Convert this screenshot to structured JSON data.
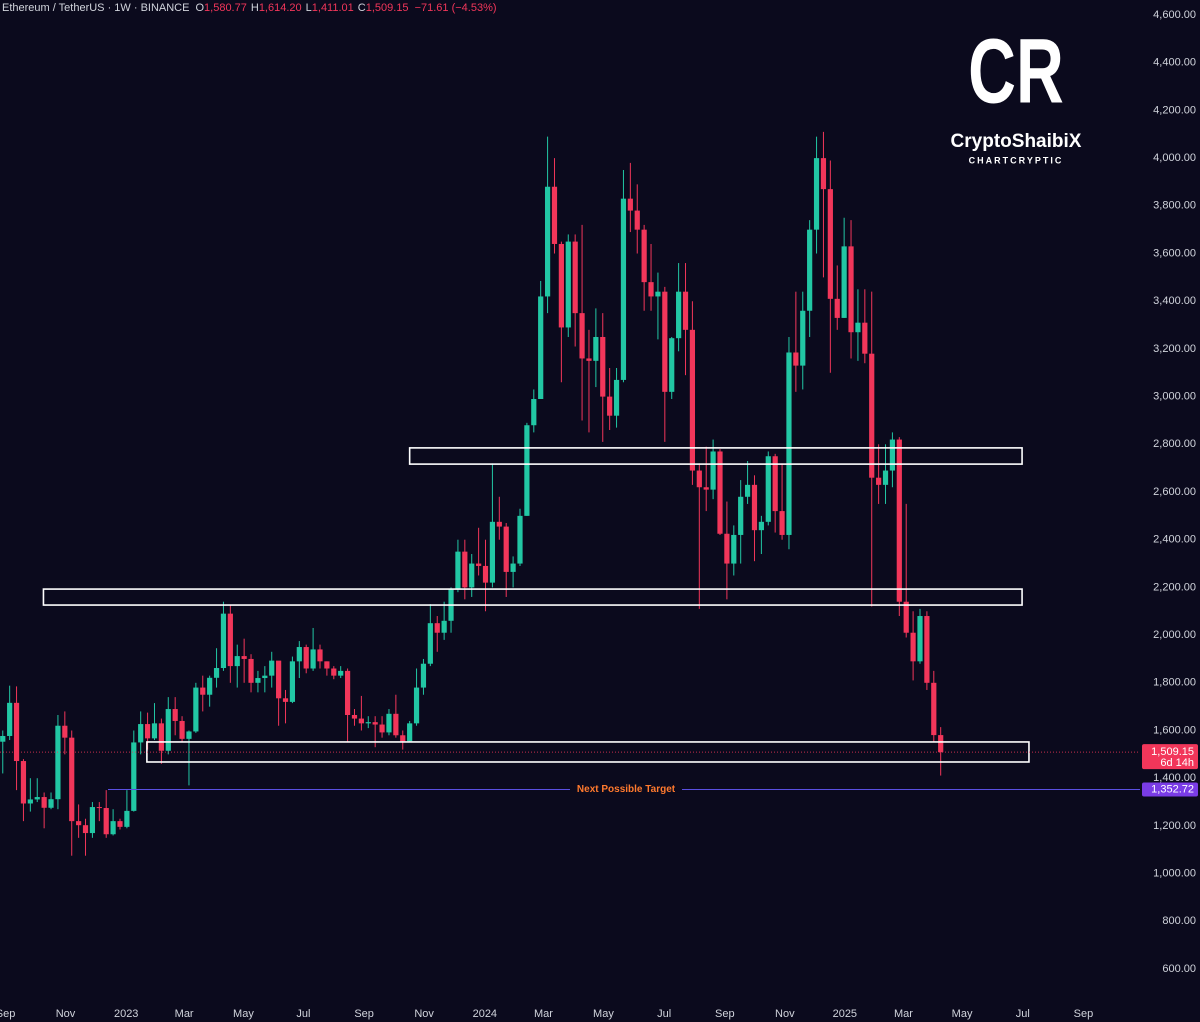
{
  "chart_data": {
    "type": "candlestick",
    "header": {
      "symbol": "Ethereum / TetherUS · 1W · BINANCE",
      "ohlc": [
        {
          "key": "O",
          "value": "1,580.77"
        },
        {
          "key": "H",
          "value": "1,614.20"
        },
        {
          "key": "L",
          "value": "1,411.01"
        },
        {
          "key": "C",
          "value": "1,509.15"
        }
      ],
      "change": "−71.61 (−4.53%)"
    },
    "logo": {
      "mark": "CR",
      "name": "CryptoShaibiX",
      "tagline": "CHARTCRYPTIC"
    },
    "up_color": "#22c7a4",
    "down_color": "#f2365a",
    "open": [
      1553,
      1577,
      1716,
      1472,
      1294,
      1311,
      1321,
      1276,
      1312,
      1620,
      1570,
      1220,
      1203,
      1170,
      1279,
      1275,
      1165,
      1220,
      1196,
      1263,
      1550,
      1627,
      1567,
      1630,
      1515,
      1690,
      1640,
      1565,
      1596,
      1780,
      1750,
      1821,
      1862,
      2090,
      1870,
      1912,
      1900,
      1800,
      1820,
      1830,
      1893,
      1735,
      1720,
      1890,
      1950,
      1860,
      1940,
      1890,
      1860,
      1830,
      1850,
      1665,
      1650,
      1630,
      1635,
      1625,
      1592,
      1670,
      1580,
      1555,
      1630,
      1780,
      1880,
      2050,
      2010,
      2060,
      2195,
      2350,
      2200,
      2300,
      2290,
      2220,
      2475,
      2455,
      2265,
      2300,
      2500,
      2880,
      2990,
      3420,
      3880,
      3640,
      3290,
      3650,
      3350,
      3160,
      3150,
      3250,
      3000,
      2920,
      3070,
      3830,
      3780,
      3700,
      3480,
      3420,
      3440,
      3020,
      3245,
      3440,
      3280,
      2690,
      2620,
      2610,
      2770,
      2425,
      2300,
      2420,
      2580,
      2630,
      2440,
      2475,
      2750,
      2520,
      2420,
      3185,
      3130,
      3360,
      3700,
      4000,
      3870,
      3410,
      3330,
      3630,
      3270,
      3310,
      3180,
      2660,
      2630,
      2690,
      2820,
      2140,
      2010,
      1890,
      2080,
      1800,
      1580.77
    ],
    "high": [
      1600,
      1788,
      1785,
      1480,
      1400,
      1400,
      1340,
      1340,
      1665,
      1680,
      1600,
      1290,
      1230,
      1300,
      1300,
      1350,
      1270,
      1230,
      1350,
      1600,
      1680,
      1675,
      1715,
      1650,
      1740,
      1740,
      1660,
      1600,
      1800,
      1830,
      1830,
      1945,
      2140,
      2125,
      1960,
      1985,
      1920,
      1850,
      1870,
      1930,
      1890,
      1770,
      1910,
      1975,
      1960,
      2030,
      1960,
      1890,
      1870,
      1870,
      1860,
      1690,
      1745,
      1660,
      1660,
      1660,
      1690,
      1750,
      1600,
      1640,
      1860,
      1900,
      2130,
      2080,
      2140,
      2200,
      2400,
      2400,
      2340,
      2450,
      2400,
      2720,
      2580,
      2470,
      2330,
      2530,
      2890,
      3030,
      3485,
      4090,
      4000,
      3650,
      3680,
      3680,
      3720,
      3280,
      3370,
      3350,
      3120,
      3120,
      3950,
      3980,
      3890,
      3720,
      3640,
      3520,
      3460,
      3250,
      3560,
      3560,
      3400,
      2720,
      2790,
      2820,
      2780,
      2560,
      2460,
      2650,
      2730,
      2670,
      2500,
      2770,
      2760,
      2720,
      3250,
      3440,
      3440,
      3740,
      4090,
      4110,
      3990,
      3550,
      3750,
      3740,
      3450,
      3450,
      3440,
      2800,
      2800,
      2850,
      2830,
      2550,
      2100,
      2110,
      2100,
      1850,
      1614.2
    ],
    "low": [
      1420,
      1560,
      1350,
      1220,
      1260,
      1300,
      1190,
      1270,
      1270,
      1500,
      1075,
      1150,
      1075,
      1150,
      1220,
      1150,
      1160,
      1185,
      1190,
      1260,
      1500,
      1520,
      1560,
      1460,
      1500,
      1580,
      1550,
      1370,
      1590,
      1680,
      1700,
      1780,
      1850,
      1800,
      1780,
      1800,
      1760,
      1760,
      1760,
      1780,
      1620,
      1630,
      1715,
      1820,
      1840,
      1850,
      1860,
      1830,
      1815,
      1820,
      1550,
      1620,
      1600,
      1610,
      1530,
      1570,
      1580,
      1570,
      1520,
      1550,
      1620,
      1750,
      1870,
      1930,
      1980,
      2010,
      2180,
      2150,
      2160,
      2250,
      2100,
      2200,
      2400,
      2160,
      2200,
      2290,
      2500,
      2850,
      2990,
      3350,
      3600,
      3060,
      3250,
      3210,
      2900,
      2850,
      3040,
      2810,
      2860,
      2870,
      3060,
      3690,
      3600,
      3360,
      3360,
      3240,
      2810,
      2990,
      3190,
      3090,
      2630,
      2110,
      2520,
      2570,
      2420,
      2150,
      2250,
      2300,
      2550,
      2310,
      2340,
      2460,
      2430,
      2400,
      2360,
      3020,
      3030,
      3250,
      3600,
      3500,
      3100,
      3280,
      3330,
      3160,
      3150,
      3140,
      2120,
      2550,
      2550,
      2620,
      2080,
      1990,
      1810,
      1880,
      1770,
      1550,
      1411.01
    ],
    "close": [
      1577,
      1716,
      1472,
      1294,
      1311,
      1321,
      1276,
      1312,
      1620,
      1570,
      1220,
      1203,
      1170,
      1279,
      1275,
      1165,
      1220,
      1196,
      1263,
      1550,
      1627,
      1567,
      1630,
      1515,
      1690,
      1640,
      1565,
      1596,
      1780,
      1750,
      1821,
      1862,
      2090,
      1870,
      1912,
      1900,
      1800,
      1820,
      1830,
      1893,
      1735,
      1720,
      1890,
      1950,
      1860,
      1940,
      1890,
      1860,
      1830,
      1850,
      1665,
      1650,
      1630,
      1635,
      1625,
      1592,
      1670,
      1580,
      1555,
      1630,
      1780,
      1880,
      2050,
      2010,
      2060,
      2195,
      2350,
      2200,
      2300,
      2290,
      2220,
      2475,
      2455,
      2265,
      2300,
      2500,
      2880,
      2990,
      3420,
      3880,
      3640,
      3290,
      3650,
      3350,
      3160,
      3150,
      3250,
      3000,
      2920,
      3070,
      3830,
      3780,
      3700,
      3480,
      3420,
      3440,
      3020,
      3245,
      3440,
      3280,
      2690,
      2620,
      2610,
      2770,
      2425,
      2300,
      2420,
      2580,
      2630,
      2440,
      2475,
      2750,
      2520,
      2420,
      3185,
      3130,
      3360,
      3700,
      4000,
      3870,
      3410,
      3330,
      3630,
      3270,
      3310,
      3180,
      2660,
      2630,
      2690,
      2820,
      2140,
      2010,
      1890,
      2080,
      1800,
      1580.77,
      1509.15
    ],
    "last_price_label": "1,509.15",
    "countdown": "6d 14h",
    "target": {
      "value": 1352.72,
      "label": "1,352.72",
      "text": "Next Possible Target",
      "color": "#5a4fe0"
    },
    "zones": [
      {
        "x": [
          59,
          147.8
        ],
        "y": [
          2717,
          2785
        ]
      },
      {
        "x": [
          5.9,
          147.8
        ],
        "y": [
          2126,
          2193
        ]
      },
      {
        "x": [
          20.9,
          148.8
        ],
        "y": [
          1468,
          1552
        ]
      }
    ],
    "xlim": [
      -0.4,
      164.9
    ],
    "xticks": [
      {
        "value": 0.4,
        "label": "Sep"
      },
      {
        "value": 9.1,
        "label": "Nov"
      },
      {
        "value": 17.9,
        "label": "2023"
      },
      {
        "value": 26.3,
        "label": "Mar"
      },
      {
        "value": 34.9,
        "label": "May"
      },
      {
        "value": 43.6,
        "label": "Jul"
      },
      {
        "value": 52.4,
        "label": "Sep"
      },
      {
        "value": 61.1,
        "label": "Nov"
      },
      {
        "value": 69.9,
        "label": "2024"
      },
      {
        "value": 78.4,
        "label": "Mar"
      },
      {
        "value": 87.1,
        "label": "May"
      },
      {
        "value": 95.9,
        "label": "Jul"
      },
      {
        "value": 104.7,
        "label": "Sep"
      },
      {
        "value": 113.4,
        "label": "Nov"
      },
      {
        "value": 122.1,
        "label": "2025"
      },
      {
        "value": 130.6,
        "label": "Mar"
      },
      {
        "value": 139.1,
        "label": "May"
      },
      {
        "value": 147.9,
        "label": "Jul"
      },
      {
        "value": 156.7,
        "label": "Sep"
      }
    ],
    "ylim": [
      470,
      4663
    ],
    "yticks": [
      {
        "value": 600,
        "label": "600.00"
      },
      {
        "value": 800,
        "label": "800.00"
      },
      {
        "value": 1000,
        "label": "1,000.00"
      },
      {
        "value": 1200,
        "label": "1,200.00"
      },
      {
        "value": 1400,
        "label": "1,400.00"
      },
      {
        "value": 1600,
        "label": "1,600.00"
      },
      {
        "value": 1800,
        "label": "1,800.00"
      },
      {
        "value": 2000,
        "label": "2,000.00"
      },
      {
        "value": 2200,
        "label": "2,200.00"
      },
      {
        "value": 2400,
        "label": "2,400.00"
      },
      {
        "value": 2600,
        "label": "2,600.00"
      },
      {
        "value": 2800,
        "label": "2,800.00"
      },
      {
        "value": 3000,
        "label": "3,000.00"
      },
      {
        "value": 3200,
        "label": "3,200.00"
      },
      {
        "value": 3400,
        "label": "3,400.00"
      },
      {
        "value": 3600,
        "label": "3,600.00"
      },
      {
        "value": 3800,
        "label": "3,800.00"
      },
      {
        "value": 4000,
        "label": "4,000.00"
      },
      {
        "value": 4200,
        "label": "4,200.00"
      },
      {
        "value": 4400,
        "label": "4,400.00"
      },
      {
        "value": 4600,
        "label": "4,600.00"
      }
    ],
    "grid": false
  }
}
